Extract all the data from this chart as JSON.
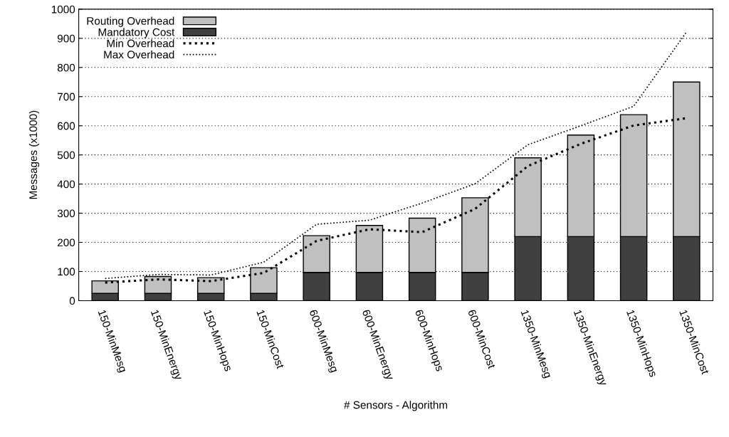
{
  "chart_data": {
    "type": "bar",
    "stacked": true,
    "xlabel": "# Sensors - Algorithm",
    "ylabel": "Messages (x1000)",
    "categories": [
      "150-MinMesg",
      "150-MinEnergy",
      "150-MinHops",
      "150-MinCost",
      "600-MinMesg",
      "600-MinEnergy",
      "600-MinHops",
      "600-MinCost",
      "1350-MinMesg",
      "1350-MinEnergy",
      "1350-MinHops",
      "1350-MinCost"
    ],
    "series": [
      {
        "name": "Mandatory Cost",
        "color": "#404040",
        "values": [
          25,
          25,
          25,
          25,
          97,
          97,
          97,
          97,
          220,
          220,
          220,
          220
        ]
      },
      {
        "name": "Routing Overhead",
        "color": "#c0c0c0",
        "values": [
          43,
          58,
          54,
          88,
          126,
          161,
          186,
          256,
          270,
          348,
          418,
          530
        ]
      },
      {
        "name": "Min Overhead",
        "type": "line",
        "line_style": "dotted",
        "color": "#000000",
        "values": [
          62,
          73,
          67,
          95,
          205,
          245,
          235,
          315,
          462,
          538,
          601,
          626
        ]
      },
      {
        "name": "Max Overhead",
        "type": "line",
        "line_style": "dotted",
        "color": "#000000",
        "values": [
          76,
          90,
          88,
          132,
          262,
          276,
          335,
          401,
          535,
          600,
          667,
          922
        ]
      }
    ],
    "ylim": [
      0,
      1000
    ],
    "yticks": [
      0,
      100,
      200,
      300,
      400,
      500,
      600,
      700,
      800,
      900,
      1000
    ],
    "grid": "y",
    "legend": "top left",
    "marker": "none"
  }
}
